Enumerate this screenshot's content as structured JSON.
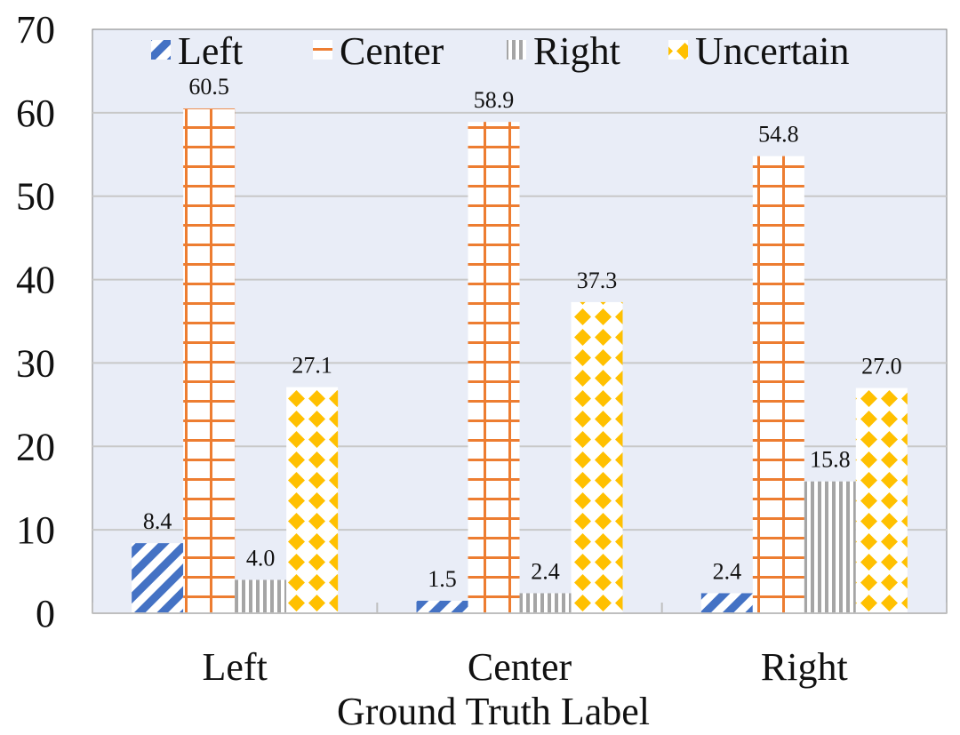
{
  "chart_data": {
    "type": "bar",
    "title": "",
    "xlabel": "Ground Truth Label",
    "ylabel": "",
    "categories": [
      "Left",
      "Center",
      "Right"
    ],
    "ylim": [
      0,
      70
    ],
    "yticks": [
      "0",
      "10",
      "20",
      "30",
      "40",
      "50",
      "60",
      "70"
    ],
    "grid": "horizontal",
    "legend_placement": "top",
    "series": [
      {
        "name": "Left",
        "values": [
          8.4,
          1.5,
          2.4
        ],
        "labels": [
          "8.4",
          "1.5",
          "2.4"
        ],
        "color": "#4472C4",
        "pattern": "diagonal-stripes"
      },
      {
        "name": "Center",
        "values": [
          60.5,
          58.9,
          54.8
        ],
        "labels": [
          "60.5",
          "58.9",
          "54.8"
        ],
        "color": "#ED7D31",
        "pattern": "grid"
      },
      {
        "name": "Right",
        "values": [
          4.0,
          2.4,
          15.8
        ],
        "labels": [
          "4.0",
          "2.4",
          "15.8"
        ],
        "color": "#A5A5A5",
        "pattern": "vertical-stripes"
      },
      {
        "name": "Uncertain",
        "values": [
          27.1,
          37.3,
          27.0
        ],
        "labels": [
          "27.1",
          "37.3",
          "27.0"
        ],
        "color": "#FFC000",
        "pattern": "diamonds"
      }
    ],
    "plot_background": "#E9EDF7",
    "grid_color": "#C8C8C8"
  }
}
